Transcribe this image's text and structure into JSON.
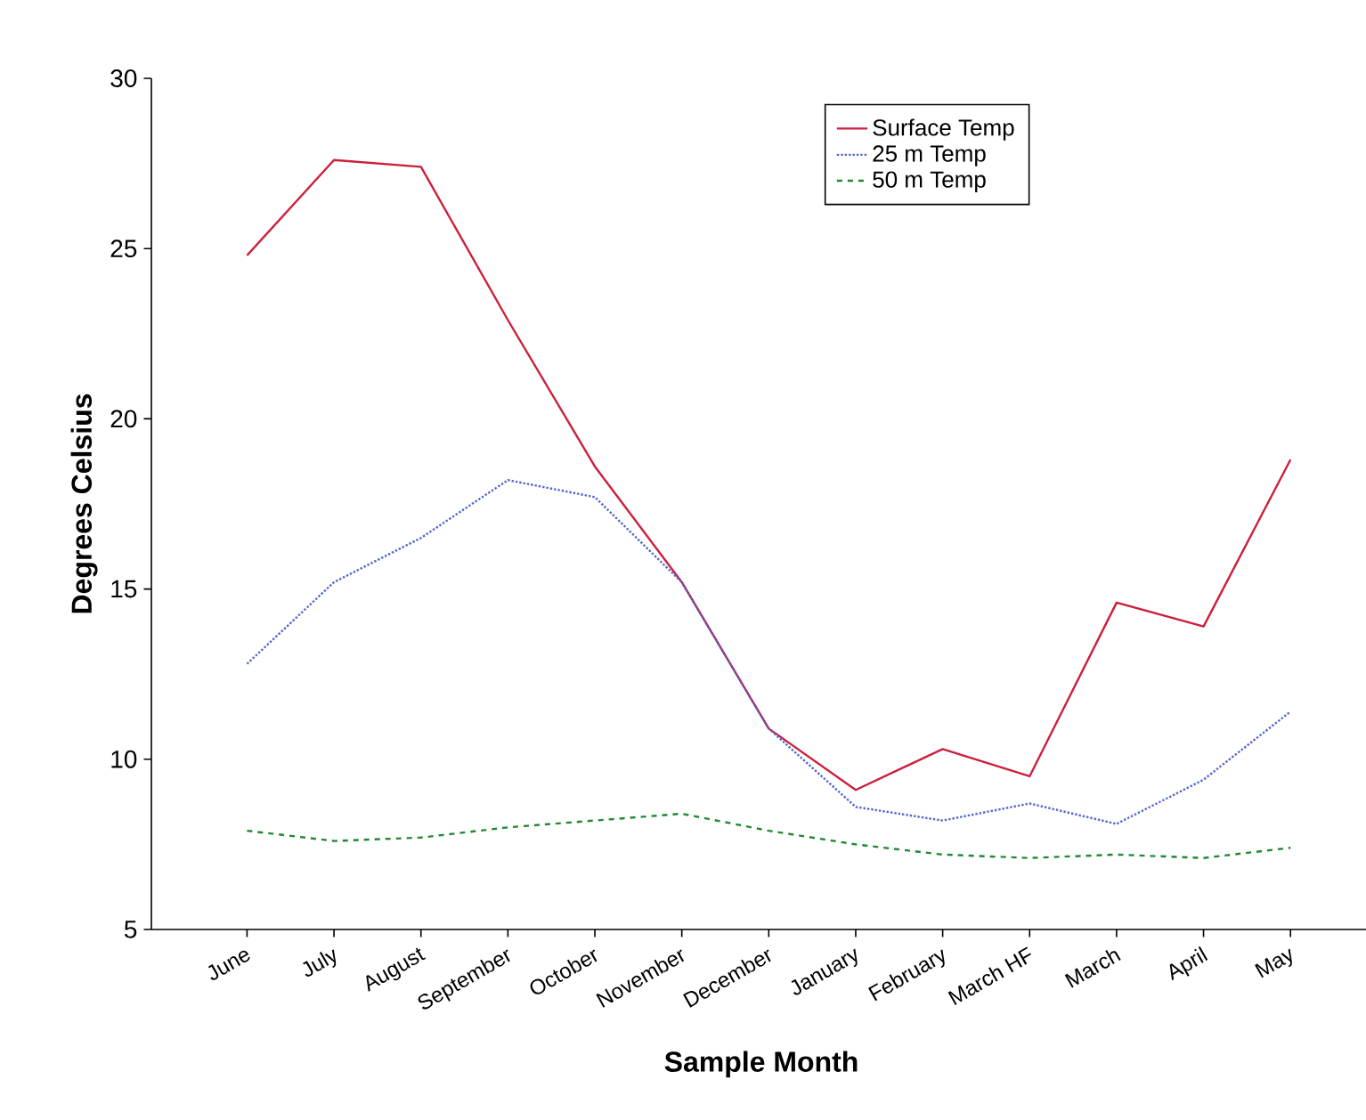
{
  "chart_data": {
    "type": "line",
    "xlabel": "Sample Month",
    "ylabel": "Degrees Celsius",
    "categories": [
      "June",
      "July",
      "August",
      "September",
      "October",
      "November",
      "December",
      "January",
      "February",
      "March HF",
      "March",
      "April",
      "May"
    ],
    "series": [
      {
        "name": "Surface Temp",
        "color": "#cc1f3c",
        "line_style": "solid",
        "values": [
          24.8,
          27.6,
          27.4,
          22.9,
          18.6,
          15.2,
          10.9,
          9.1,
          10.3,
          9.5,
          14.6,
          13.9,
          18.8
        ]
      },
      {
        "name": "25 m Temp",
        "color": "#5566cc",
        "line_style": "dotted",
        "values": [
          12.8,
          15.2,
          16.5,
          18.2,
          17.7,
          15.2,
          10.9,
          8.6,
          8.2,
          8.7,
          8.1,
          9.4,
          11.4
        ]
      },
      {
        "name": "50 m Temp",
        "color": "#228833",
        "line_style": "dashed",
        "values": [
          7.9,
          7.6,
          7.7,
          8.0,
          8.2,
          8.4,
          7.9,
          7.5,
          7.2,
          7.1,
          7.2,
          7.1,
          7.4
        ]
      }
    ],
    "ylim": [
      5,
      30
    ],
    "yticks": [
      5,
      10,
      15,
      20,
      25,
      30
    ],
    "grid": false,
    "legend": "top right",
    "marker": "none"
  }
}
